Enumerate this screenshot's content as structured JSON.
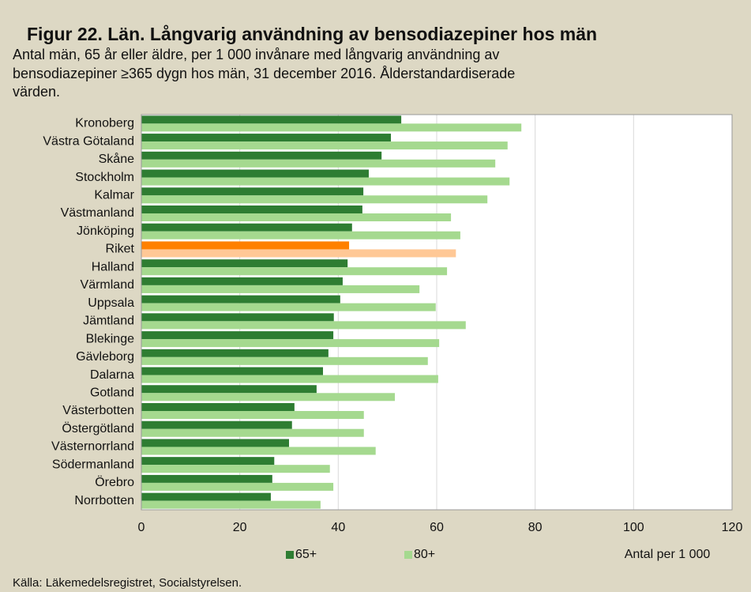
{
  "chart_data": {
    "type": "hbar",
    "title": "Figur 22. Län. Långvarig användning av bensodiazepiner hos män",
    "subtitle": [
      "Antal män, 65 år eller äldre, per 1 000 invånare med långvarig användning av",
      "bensodiazepiner ≥365 dygn hos män, 31 december 2016. Ålderstandardiserade",
      "värden."
    ],
    "x_label": "Antal per 1 000",
    "source": "Källa: Läkemedelsregistret, Socialstyrelsen.",
    "categories": [
      "Kronoberg",
      "Västra Götaland",
      "Skåne",
      "Stockholm",
      "Kalmar",
      "Västmanland",
      "Jönköping",
      "Riket",
      "Halland",
      "Värmland",
      "Uppsala",
      "Jämtland",
      "Blekinge",
      "Gävleborg",
      "Dalarna",
      "Gotland",
      "Västerbotten",
      "Östergötland",
      "Västernorrland",
      "Södermanland",
      "Örebro",
      "Norrbotten"
    ],
    "series": [
      {
        "name": "65+",
        "color": "#2e7d32",
        "highlight_color": "#ff8000",
        "values": [
          52.8,
          50.7,
          48.8,
          46.2,
          45.1,
          44.9,
          42.8,
          42.2,
          41.9,
          40.9,
          40.4,
          39.1,
          39.0,
          38.0,
          36.9,
          35.6,
          31.1,
          30.6,
          30.0,
          27.0,
          26.6,
          26.3
        ]
      },
      {
        "name": "80+",
        "color": "#a5d98f",
        "highlight_color": "#ffc896",
        "values": [
          77.2,
          74.4,
          71.9,
          74.8,
          70.3,
          62.9,
          64.8,
          63.9,
          62.1,
          56.5,
          59.8,
          65.9,
          60.5,
          58.2,
          60.3,
          51.5,
          45.2,
          45.2,
          47.6,
          38.3,
          39.0,
          36.4
        ]
      }
    ],
    "highlight": "Riket",
    "xlim": [
      0,
      120
    ],
    "xticks": [
      0,
      20,
      40,
      60,
      80,
      100,
      120
    ],
    "grid": true
  }
}
